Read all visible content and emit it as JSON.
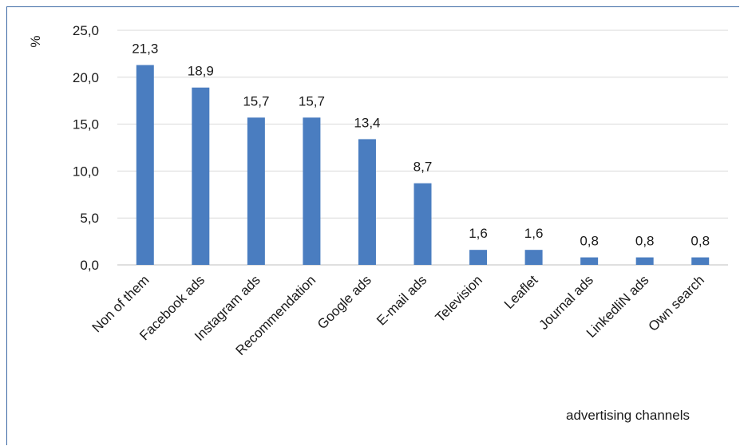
{
  "chart_data": {
    "type": "bar",
    "title": "",
    "ylabel": "%",
    "xlabel": "advertising channels",
    "categories": [
      "Non of them",
      "Facebook ads",
      "Instagram ads",
      "Recommendation",
      "Google ads",
      "E-mail ads",
      "Television",
      "Leaflet",
      "Journal ads",
      "LinkedliN ads",
      "Own search"
    ],
    "values": [
      21.3,
      18.9,
      15.7,
      15.7,
      13.4,
      8.7,
      1.6,
      1.6,
      0.8,
      0.8,
      0.8
    ],
    "value_labels": [
      "21,3",
      "18,9",
      "15,7",
      "15,7",
      "13,4",
      "8,7",
      "1,6",
      "1,6",
      "0,8",
      "0,8",
      "0,8"
    ],
    "yticks": [
      0,
      5,
      10,
      15,
      20,
      25
    ],
    "ytick_labels": [
      "0,0",
      "5,0",
      "10,0",
      "15,0",
      "20,0",
      "25,0"
    ],
    "ylim": [
      0,
      25
    ],
    "grid": true,
    "legend": "none",
    "colors": {
      "bar": "#4a7dc0",
      "grid": "#d9d9d9",
      "axis": "#bfbfbf",
      "frame": "#3d6aa5"
    }
  }
}
